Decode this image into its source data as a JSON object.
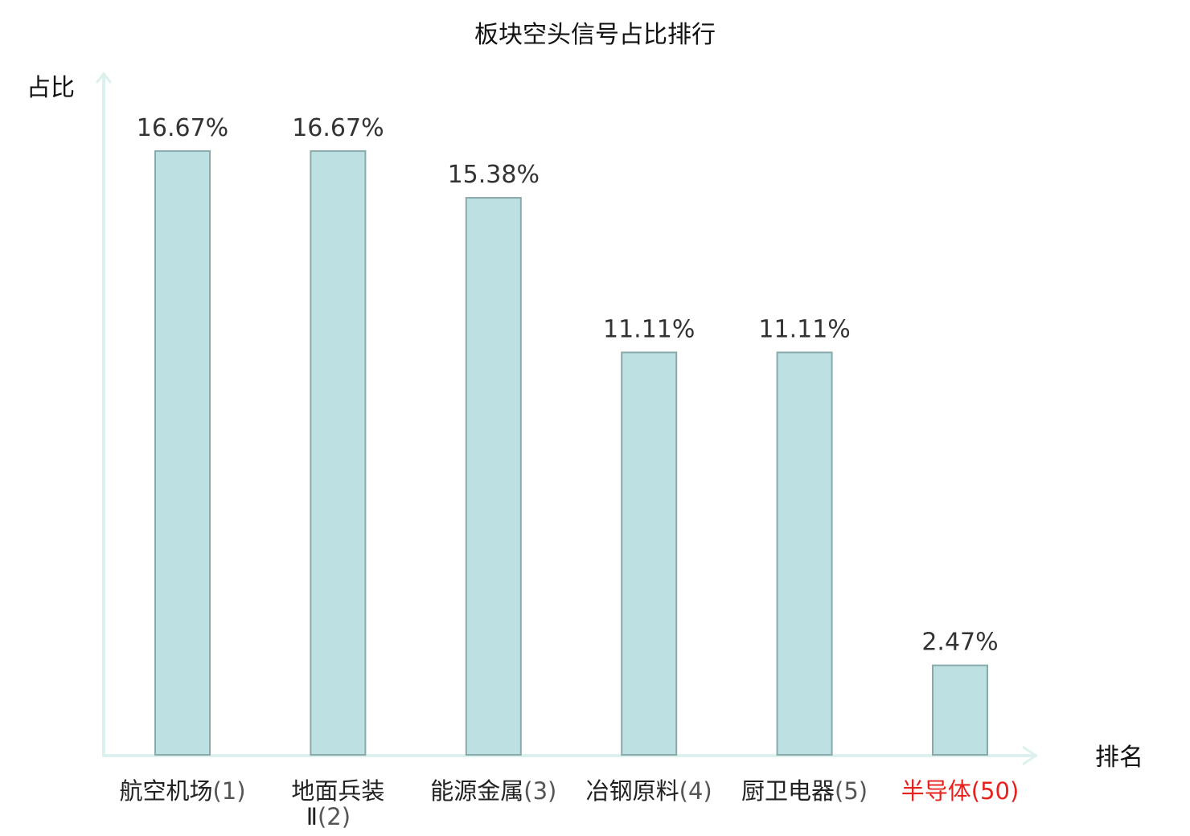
{
  "chart_data": {
    "type": "bar",
    "title": "板块空头信号占比排行",
    "ylabel": "占比",
    "xlabel": "排名",
    "categories": [
      {
        "name": "航空机场",
        "rank": "(1)",
        "highlight": false
      },
      {
        "name": "地面兵装",
        "name2": "Ⅱ",
        "rank": "(2)",
        "highlight": false
      },
      {
        "name": "能源金属",
        "rank": "(3)",
        "highlight": false
      },
      {
        "name": "冶钢原料",
        "rank": "(4)",
        "highlight": false
      },
      {
        "name": "厨卫电器",
        "rank": "(5)",
        "highlight": false
      },
      {
        "name": "半导体",
        "rank": "(50)",
        "highlight": true
      }
    ],
    "values": [
      16.67,
      16.67,
      15.38,
      11.11,
      11.11,
      2.47
    ],
    "value_labels": [
      "16.67%",
      "16.67%",
      "15.38%",
      "11.11%",
      "11.11%",
      "2.47%"
    ],
    "unit": "%",
    "ylim": [
      0,
      18
    ],
    "grid": false,
    "colors": {
      "bar_fill": "#bde0e3",
      "bar_stroke": "#8aa9aa",
      "axis": "#dcf0ee",
      "highlight_text": "#e8211d"
    }
  }
}
